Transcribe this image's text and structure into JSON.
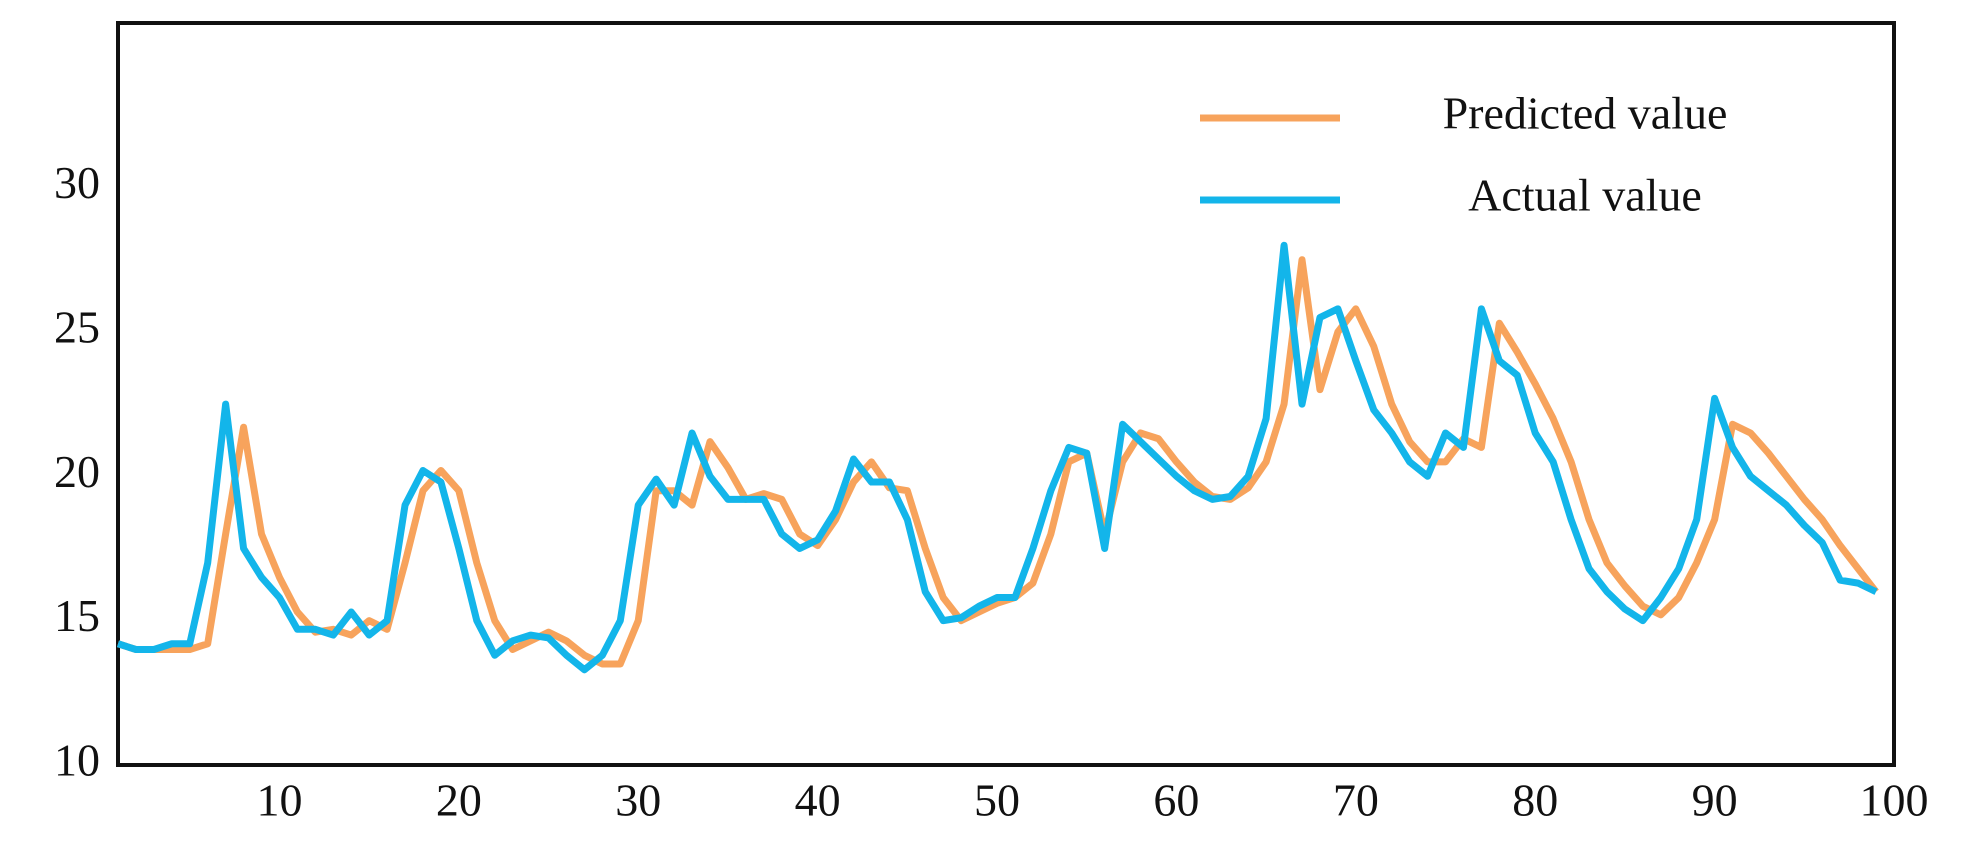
{
  "chart_data": {
    "type": "line",
    "x": [
      1,
      2,
      3,
      4,
      5,
      6,
      7,
      8,
      9,
      10,
      11,
      12,
      13,
      14,
      15,
      16,
      17,
      18,
      19,
      20,
      21,
      22,
      23,
      24,
      25,
      26,
      27,
      28,
      29,
      30,
      31,
      32,
      33,
      34,
      35,
      36,
      37,
      38,
      39,
      40,
      41,
      42,
      43,
      44,
      45,
      46,
      47,
      48,
      49,
      50,
      51,
      52,
      53,
      54,
      55,
      56,
      57,
      58,
      59,
      60,
      61,
      62,
      63,
      64,
      65,
      66,
      67,
      68,
      69,
      70,
      71,
      72,
      73,
      74,
      75,
      76,
      77,
      78,
      79,
      80,
      81,
      82,
      83,
      84,
      85,
      86,
      87,
      88,
      89,
      90,
      91,
      92,
      93,
      94,
      95,
      96,
      97,
      98,
      99
    ],
    "series": [
      {
        "name": "Predicted value",
        "color": "#f7a35c",
        "values": [
          14.2,
          14,
          14,
          14,
          14,
          14.2,
          18,
          21.7,
          18,
          16.5,
          15.3,
          14.6,
          14.7,
          14.5,
          15,
          14.7,
          17,
          19.5,
          20.2,
          19.5,
          17,
          15,
          14,
          14.3,
          14.6,
          14.3,
          13.8,
          13.5,
          13.5,
          15,
          19.5,
          19.5,
          19,
          21.2,
          20.3,
          19.2,
          19.4,
          19.2,
          18,
          17.6,
          18.5,
          19.8,
          20.5,
          19.6,
          19.5,
          17.5,
          15.8,
          15,
          15.3,
          15.6,
          15.8,
          16.3,
          18,
          20.5,
          20.8,
          18,
          20.5,
          21.5,
          21.3,
          20.5,
          19.8,
          19.3,
          19.2,
          19.6,
          20.5,
          22.5,
          27.5,
          23,
          25,
          25.8,
          24.5,
          22.5,
          21.2,
          20.5,
          20.5,
          21.3,
          21,
          25.3,
          24.3,
          23.2,
          22,
          20.5,
          18.5,
          17,
          16.2,
          15.5,
          15.2,
          15.8,
          17,
          18.5,
          21.8,
          21.5,
          20.8,
          20,
          19.2,
          18.5,
          17.6,
          16.8,
          16
        ]
      },
      {
        "name": "Actual value",
        "color": "#13b5ea",
        "values": [
          14.2,
          14,
          14,
          14.2,
          14.2,
          17,
          22.5,
          17.5,
          16.5,
          15.8,
          14.7,
          14.7,
          14.5,
          15.3,
          14.5,
          15,
          19,
          20.2,
          19.8,
          17.5,
          15,
          13.8,
          14.3,
          14.5,
          14.4,
          13.8,
          13.3,
          13.8,
          15,
          19,
          19.9,
          19,
          21.5,
          20,
          19.2,
          19.2,
          19.2,
          18,
          17.5,
          17.8,
          18.8,
          20.6,
          19.8,
          19.8,
          18.5,
          16,
          15,
          15.1,
          15.5,
          15.8,
          15.8,
          17.5,
          19.5,
          21,
          20.8,
          17.5,
          21.8,
          21.2,
          20.6,
          20,
          19.5,
          19.2,
          19.3,
          20,
          22,
          28,
          22.5,
          25.5,
          25.8,
          24,
          22.3,
          21.5,
          20.5,
          20,
          21.5,
          21,
          25.8,
          24,
          23.5,
          21.5,
          20.5,
          18.5,
          16.8,
          16,
          15.4,
          15,
          15.8,
          16.8,
          18.5,
          22.7,
          21,
          20,
          19.5,
          19,
          18.3,
          17.7,
          16.4,
          16.3,
          16
        ]
      }
    ],
    "xlim": [
      1,
      100
    ],
    "xticks": [
      10,
      20,
      30,
      40,
      50,
      60,
      70,
      80,
      90,
      100
    ],
    "ylim": [
      10,
      35.7
    ],
    "yticks": [
      10,
      15,
      20,
      25,
      30
    ],
    "legend": "upper-right"
  }
}
